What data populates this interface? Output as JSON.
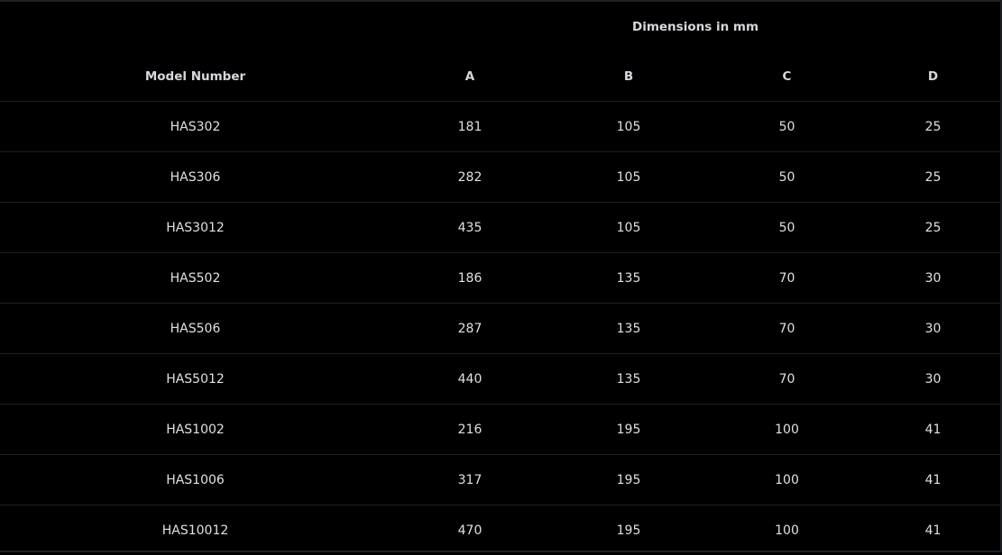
{
  "table": {
    "group_header": "Dimensions in mm",
    "columns": [
      "Model Number",
      "A",
      "B",
      "C",
      "D"
    ],
    "rows": [
      [
        "HAS302",
        "181",
        "105",
        "50",
        "25"
      ],
      [
        "HAS306",
        "282",
        "105",
        "50",
        "25"
      ],
      [
        "HAS3012",
        "435",
        "105",
        "50",
        "25"
      ],
      [
        "HAS502",
        "186",
        "135",
        "70",
        "30"
      ],
      [
        "HAS506",
        "287",
        "135",
        "70",
        "30"
      ],
      [
        "HAS5012",
        "440",
        "135",
        "70",
        "30"
      ],
      [
        "HAS1002",
        "216",
        "195",
        "100",
        "41"
      ],
      [
        "HAS1006",
        "317",
        "195",
        "100",
        "41"
      ],
      [
        "HAS10012",
        "470",
        "195",
        "100",
        "41"
      ]
    ]
  }
}
